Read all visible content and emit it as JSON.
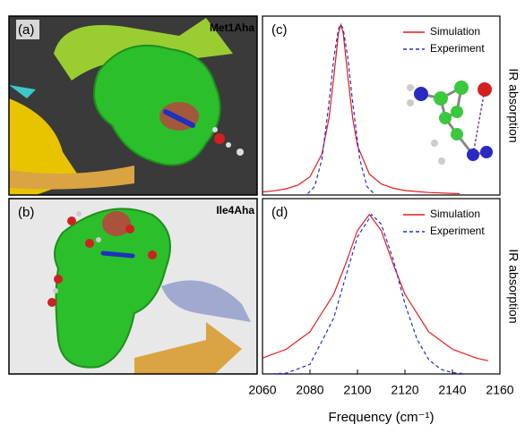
{
  "images": [
    {
      "label": "(a)",
      "caption": "Met1Aha"
    },
    {
      "label": "(b)",
      "caption": "Ile4Aha"
    }
  ],
  "chart_data": [
    {
      "type": "line",
      "label": "(c)",
      "ylabel": "IR absorption",
      "xlim": [
        2060,
        2160
      ],
      "ylim": [
        0,
        1.05
      ],
      "legend": "top-right",
      "series": [
        {
          "name": "Simulation",
          "color": "#e41a1c",
          "dash": false,
          "x": [
            2060,
            2065,
            2070,
            2075,
            2080,
            2085,
            2088,
            2090,
            2092,
            2093,
            2094,
            2096,
            2098,
            2100,
            2105,
            2110,
            2115,
            2120,
            2130,
            2143
          ],
          "values": [
            0.018,
            0.025,
            0.037,
            0.059,
            0.107,
            0.24,
            0.45,
            0.69,
            0.95,
            1,
            0.95,
            0.69,
            0.45,
            0.29,
            0.123,
            0.065,
            0.04,
            0.026,
            0.0145,
            0.008
          ]
        },
        {
          "name": "Experiment",
          "color": "#1f2fd0",
          "dash": true,
          "x": [
            2079,
            2082,
            2085,
            2088,
            2090,
            2092,
            2093,
            2094,
            2096,
            2098,
            2101,
            2104,
            2107
          ],
          "values": [
            0.008,
            0.05,
            0.21,
            0.54,
            0.8,
            0.975,
            1,
            0.975,
            0.8,
            0.54,
            0.21,
            0.05,
            0.008
          ]
        }
      ]
    },
    {
      "type": "line",
      "label": "(d)",
      "ylabel": "IR absorption",
      "xlabel": "Frequency (cm⁻¹)",
      "xlim": [
        2060,
        2160
      ],
      "ylim": [
        0,
        1.1
      ],
      "xticks": [
        2060,
        2080,
        2100,
        2120,
        2140,
        2160
      ],
      "legend": "top-right",
      "series": [
        {
          "name": "Simulation",
          "color": "#e41a1c",
          "dash": false,
          "x": [
            2060,
            2070,
            2080,
            2090,
            2095,
            2100,
            2105,
            2110,
            2115,
            2120,
            2130,
            2140,
            2150,
            2155
          ],
          "values": [
            0.1,
            0.155,
            0.265,
            0.5,
            0.69,
            0.9,
            1,
            0.9,
            0.69,
            0.5,
            0.265,
            0.155,
            0.1,
            0.083
          ]
        },
        {
          "name": "Experiment",
          "color": "#1f2fd0",
          "dash": true,
          "x": [
            2064,
            2070,
            2080,
            2090,
            2095,
            2100,
            2106,
            2110,
            2115,
            2120,
            2125,
            2130,
            2135,
            2140,
            2145
          ],
          "values": [
            0.001,
            0.005,
            0.06,
            0.35,
            0.61,
            0.86,
            1,
            0.94,
            0.72,
            0.44,
            0.22,
            0.09,
            0.03,
            0.008,
            0.002
          ]
        }
      ]
    }
  ]
}
